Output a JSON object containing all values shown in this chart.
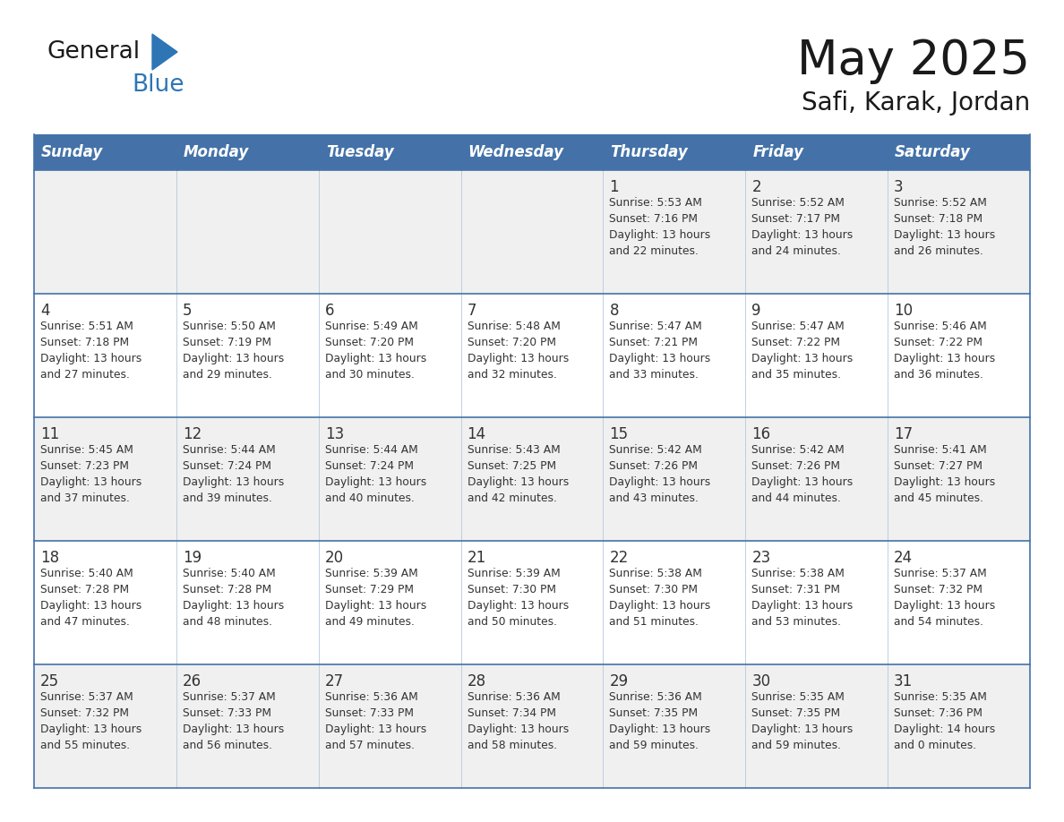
{
  "title": "May 2025",
  "subtitle": "Safi, Karak, Jordan",
  "days_of_week": [
    "Sunday",
    "Monday",
    "Tuesday",
    "Wednesday",
    "Thursday",
    "Friday",
    "Saturday"
  ],
  "header_bg": "#4472a8",
  "header_text": "#ffffff",
  "cell_bg_odd": "#f0f0f0",
  "cell_bg_even": "#ffffff",
  "border_color_strong": "#4472a8",
  "border_color_light": "#b8c8dc",
  "text_color": "#333333",
  "title_color": "#1a1a1a",
  "calendar_data": [
    [
      null,
      null,
      null,
      null,
      {
        "day": 1,
        "sunrise": "5:53 AM",
        "sunset": "7:16 PM",
        "daylight_hrs": 13,
        "daylight_min": 22
      },
      {
        "day": 2,
        "sunrise": "5:52 AM",
        "sunset": "7:17 PM",
        "daylight_hrs": 13,
        "daylight_min": 24
      },
      {
        "day": 3,
        "sunrise": "5:52 AM",
        "sunset": "7:18 PM",
        "daylight_hrs": 13,
        "daylight_min": 26
      }
    ],
    [
      {
        "day": 4,
        "sunrise": "5:51 AM",
        "sunset": "7:18 PM",
        "daylight_hrs": 13,
        "daylight_min": 27
      },
      {
        "day": 5,
        "sunrise": "5:50 AM",
        "sunset": "7:19 PM",
        "daylight_hrs": 13,
        "daylight_min": 29
      },
      {
        "day": 6,
        "sunrise": "5:49 AM",
        "sunset": "7:20 PM",
        "daylight_hrs": 13,
        "daylight_min": 30
      },
      {
        "day": 7,
        "sunrise": "5:48 AM",
        "sunset": "7:20 PM",
        "daylight_hrs": 13,
        "daylight_min": 32
      },
      {
        "day": 8,
        "sunrise": "5:47 AM",
        "sunset": "7:21 PM",
        "daylight_hrs": 13,
        "daylight_min": 33
      },
      {
        "day": 9,
        "sunrise": "5:47 AM",
        "sunset": "7:22 PM",
        "daylight_hrs": 13,
        "daylight_min": 35
      },
      {
        "day": 10,
        "sunrise": "5:46 AM",
        "sunset": "7:22 PM",
        "daylight_hrs": 13,
        "daylight_min": 36
      }
    ],
    [
      {
        "day": 11,
        "sunrise": "5:45 AM",
        "sunset": "7:23 PM",
        "daylight_hrs": 13,
        "daylight_min": 37
      },
      {
        "day": 12,
        "sunrise": "5:44 AM",
        "sunset": "7:24 PM",
        "daylight_hrs": 13,
        "daylight_min": 39
      },
      {
        "day": 13,
        "sunrise": "5:44 AM",
        "sunset": "7:24 PM",
        "daylight_hrs": 13,
        "daylight_min": 40
      },
      {
        "day": 14,
        "sunrise": "5:43 AM",
        "sunset": "7:25 PM",
        "daylight_hrs": 13,
        "daylight_min": 42
      },
      {
        "day": 15,
        "sunrise": "5:42 AM",
        "sunset": "7:26 PM",
        "daylight_hrs": 13,
        "daylight_min": 43
      },
      {
        "day": 16,
        "sunrise": "5:42 AM",
        "sunset": "7:26 PM",
        "daylight_hrs": 13,
        "daylight_min": 44
      },
      {
        "day": 17,
        "sunrise": "5:41 AM",
        "sunset": "7:27 PM",
        "daylight_hrs": 13,
        "daylight_min": 45
      }
    ],
    [
      {
        "day": 18,
        "sunrise": "5:40 AM",
        "sunset": "7:28 PM",
        "daylight_hrs": 13,
        "daylight_min": 47
      },
      {
        "day": 19,
        "sunrise": "5:40 AM",
        "sunset": "7:28 PM",
        "daylight_hrs": 13,
        "daylight_min": 48
      },
      {
        "day": 20,
        "sunrise": "5:39 AM",
        "sunset": "7:29 PM",
        "daylight_hrs": 13,
        "daylight_min": 49
      },
      {
        "day": 21,
        "sunrise": "5:39 AM",
        "sunset": "7:30 PM",
        "daylight_hrs": 13,
        "daylight_min": 50
      },
      {
        "day": 22,
        "sunrise": "5:38 AM",
        "sunset": "7:30 PM",
        "daylight_hrs": 13,
        "daylight_min": 51
      },
      {
        "day": 23,
        "sunrise": "5:38 AM",
        "sunset": "7:31 PM",
        "daylight_hrs": 13,
        "daylight_min": 53
      },
      {
        "day": 24,
        "sunrise": "5:37 AM",
        "sunset": "7:32 PM",
        "daylight_hrs": 13,
        "daylight_min": 54
      }
    ],
    [
      {
        "day": 25,
        "sunrise": "5:37 AM",
        "sunset": "7:32 PM",
        "daylight_hrs": 13,
        "daylight_min": 55
      },
      {
        "day": 26,
        "sunrise": "5:37 AM",
        "sunset": "7:33 PM",
        "daylight_hrs": 13,
        "daylight_min": 56
      },
      {
        "day": 27,
        "sunrise": "5:36 AM",
        "sunset": "7:33 PM",
        "daylight_hrs": 13,
        "daylight_min": 57
      },
      {
        "day": 28,
        "sunrise": "5:36 AM",
        "sunset": "7:34 PM",
        "daylight_hrs": 13,
        "daylight_min": 58
      },
      {
        "day": 29,
        "sunrise": "5:36 AM",
        "sunset": "7:35 PM",
        "daylight_hrs": 13,
        "daylight_min": 59
      },
      {
        "day": 30,
        "sunrise": "5:35 AM",
        "sunset": "7:35 PM",
        "daylight_hrs": 13,
        "daylight_min": 59
      },
      {
        "day": 31,
        "sunrise": "5:35 AM",
        "sunset": "7:36 PM",
        "daylight_hrs": 14,
        "daylight_min": 0
      }
    ]
  ],
  "logo_color_general": "#1a1a1a",
  "logo_color_blue": "#2e75b6",
  "logo_triangle_color": "#2e75b6",
  "fig_width": 11.88,
  "fig_height": 9.18,
  "dpi": 100
}
